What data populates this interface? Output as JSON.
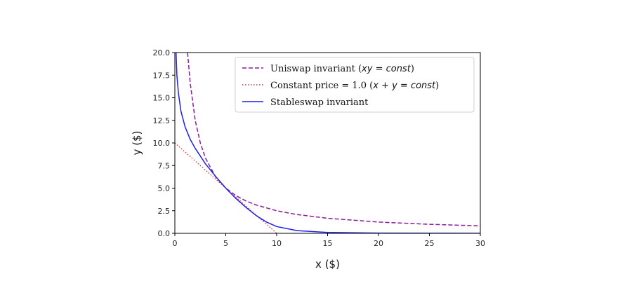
{
  "chart_data": {
    "type": "line",
    "title": "",
    "xlabel": "x ($)",
    "ylabel": "y ($)",
    "xlim": [
      0,
      30
    ],
    "ylim": [
      0,
      20
    ],
    "xticks": [
      "0",
      "5",
      "10",
      "15",
      "20",
      "25",
      "30"
    ],
    "yticks": [
      "0.0",
      "2.5",
      "5.0",
      "7.5",
      "10.0",
      "12.5",
      "15.0",
      "17.5",
      "20.0"
    ],
    "grid": false,
    "legend_position": "top-right",
    "series": [
      {
        "name": "Uniswap invariant (xy = const)",
        "color": "#8b1a9e",
        "style": "dashed",
        "x": [
          1.25,
          1.5,
          2,
          2.5,
          3,
          4,
          5,
          6,
          7,
          8,
          10,
          12,
          15,
          20,
          25,
          30
        ],
        "y": [
          20.0,
          16.67,
          12.5,
          10.0,
          8.33,
          6.25,
          5.0,
          4.17,
          3.57,
          3.13,
          2.5,
          2.08,
          1.67,
          1.25,
          1.0,
          0.83
        ]
      },
      {
        "name": "Constant price = 1.0 (x + y = const)",
        "color": "#e0302a",
        "style": "dotted",
        "x": [
          0,
          10
        ],
        "y": [
          10,
          0
        ]
      },
      {
        "name": "Stableswap invariant",
        "color": "#1f1fe6",
        "style": "solid",
        "x": [
          0.12,
          0.2,
          0.35,
          0.6,
          1.0,
          1.5,
          2.0,
          3.0,
          4.0,
          5.0,
          6.0,
          7.0,
          8.0,
          9.0,
          10.0,
          12.0,
          15.0,
          20.0,
          25.0,
          30.0
        ],
        "y": [
          20.0,
          17.5,
          15.5,
          13.5,
          11.8,
          10.4,
          9.4,
          7.7,
          6.3,
          5.0,
          3.85,
          2.85,
          1.95,
          1.25,
          0.75,
          0.3,
          0.1,
          0.03,
          0.02,
          0.01
        ]
      }
    ],
    "legend_labels": [
      {
        "text": "Uniswap invariant (",
        "math": "xy = const",
        "tail": ")"
      },
      {
        "text": "Constant price = 1.0 (",
        "math": "x + y = const",
        "tail": ")"
      },
      {
        "text": "Stableswap invariant",
        "math": "",
        "tail": ""
      }
    ]
  }
}
